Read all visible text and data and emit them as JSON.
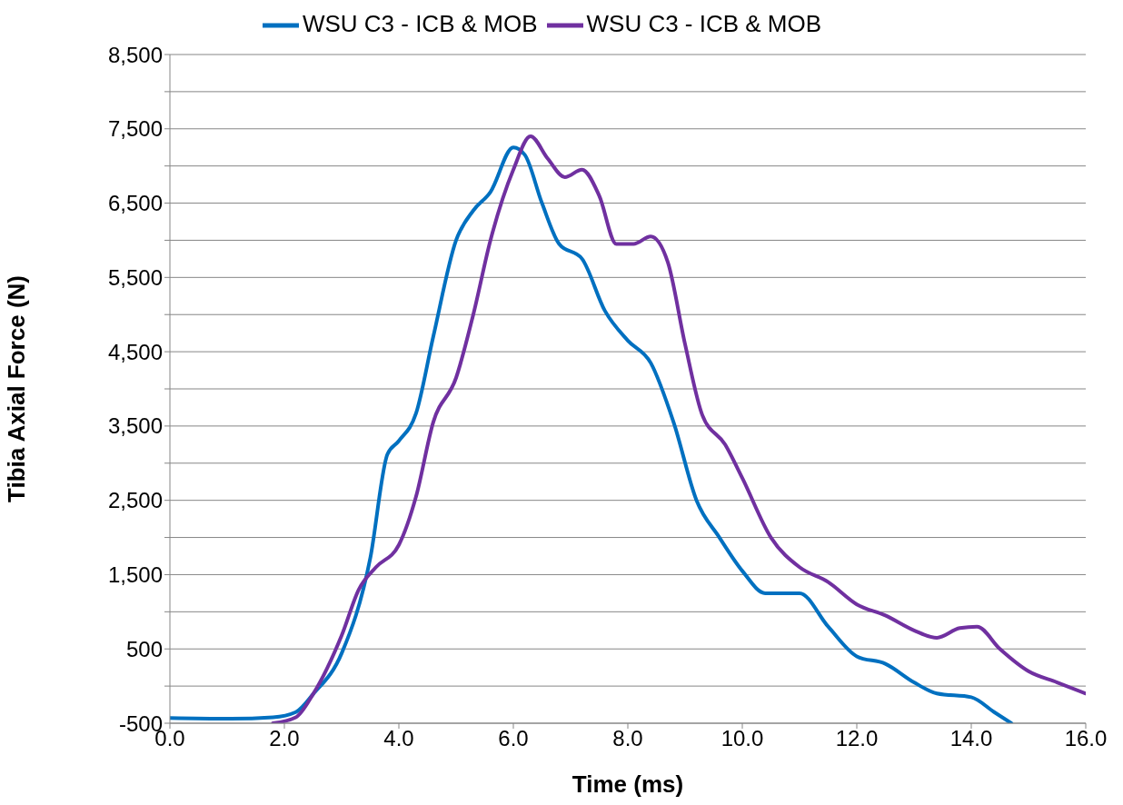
{
  "chart_data": {
    "type": "line",
    "xlabel": "Time (ms)",
    "ylabel": "Tibia Axial Force (N)",
    "xlim": [
      0,
      16
    ],
    "xticks": [
      {
        "value": 0,
        "label": "0.0"
      },
      {
        "value": 2,
        "label": "2.0"
      },
      {
        "value": 4,
        "label": "4.0"
      },
      {
        "value": 6,
        "label": "6.0"
      },
      {
        "value": 8,
        "label": "8.0"
      },
      {
        "value": 10,
        "label": "10.0"
      },
      {
        "value": 12,
        "label": "12.0"
      },
      {
        "value": 14,
        "label": "14.0"
      },
      {
        "value": 16,
        "label": "16.0"
      }
    ],
    "ylim": [
      -500,
      8500
    ],
    "yticks": [
      -500,
      {
        "value": 0,
        "label": null
      },
      500,
      {
        "value": 1000,
        "label": null
      },
      {
        "value": 1500,
        "label": "1,500"
      },
      {
        "value": 2000,
        "label": null
      },
      {
        "value": 2500,
        "label": "2,500"
      },
      {
        "value": 3000,
        "label": null
      },
      {
        "value": 3500,
        "label": "3,500"
      },
      {
        "value": 4000,
        "label": null
      },
      {
        "value": 4500,
        "label": "4,500"
      },
      {
        "value": 5000,
        "label": null
      },
      {
        "value": 5500,
        "label": "5,500"
      },
      {
        "value": 6000,
        "label": null
      },
      {
        "value": 6500,
        "label": "6,500"
      },
      {
        "value": 7000,
        "label": null
      },
      {
        "value": 7500,
        "label": "7,500"
      },
      {
        "value": 8000,
        "label": null
      },
      {
        "value": 8500,
        "label": "8,500"
      }
    ],
    "grid": "y",
    "legend": "top",
    "marker": "none",
    "line_style": "solid",
    "series": [
      {
        "name": "WSU C3 - ICB & MOB",
        "color": "#0070c0",
        "x": [
          0,
          1,
          1.8,
          2.2,
          2.5,
          3,
          3.5,
          3.8,
          4,
          4.3,
          4.6,
          5,
          5.3,
          5.6,
          6,
          6.2,
          6.5,
          6.8,
          7.2,
          7.6,
          8,
          8.4,
          8.8,
          9.2,
          9.6,
          10,
          10.4,
          11,
          11.5,
          12,
          12.5,
          13,
          13.4,
          14,
          14.4,
          14.7
        ],
        "values": [
          -430,
          -440,
          -420,
          -350,
          -110,
          440,
          1720,
          3120,
          3300,
          3670,
          4700,
          6000,
          6400,
          6650,
          7250,
          7150,
          6500,
          5950,
          5750,
          5050,
          4650,
          4350,
          3550,
          2500,
          2000,
          1550,
          1250,
          1250,
          800,
          400,
          300,
          50,
          -100,
          -150,
          -350,
          -500
        ]
      },
      {
        "name": "WSU C3 - ICB & MOB",
        "color": "#7030a0",
        "x": [
          1.8,
          2.2,
          2.5,
          3,
          3.3,
          3.6,
          4,
          4.3,
          4.6,
          5,
          5.3,
          5.6,
          6,
          6.3,
          6.6,
          6.9,
          7.2,
          7.5,
          7.8,
          8.1,
          8.4,
          8.7,
          9,
          9.3,
          9.7,
          10,
          10.5,
          11,
          11.5,
          12,
          12.5,
          13,
          13.4,
          13.8,
          14.1,
          14.5,
          15,
          15.5,
          16
        ],
        "values": [
          -500,
          -420,
          -110,
          680,
          1300,
          1600,
          1900,
          2550,
          3550,
          4150,
          5000,
          6000,
          6950,
          7400,
          7100,
          6850,
          6950,
          6600,
          5950,
          5950,
          6050,
          5700,
          4600,
          3650,
          3250,
          2800,
          2000,
          1600,
          1400,
          1100,
          950,
          750,
          650,
          780,
          800,
          500,
          200,
          50,
          -100
        ]
      }
    ]
  }
}
